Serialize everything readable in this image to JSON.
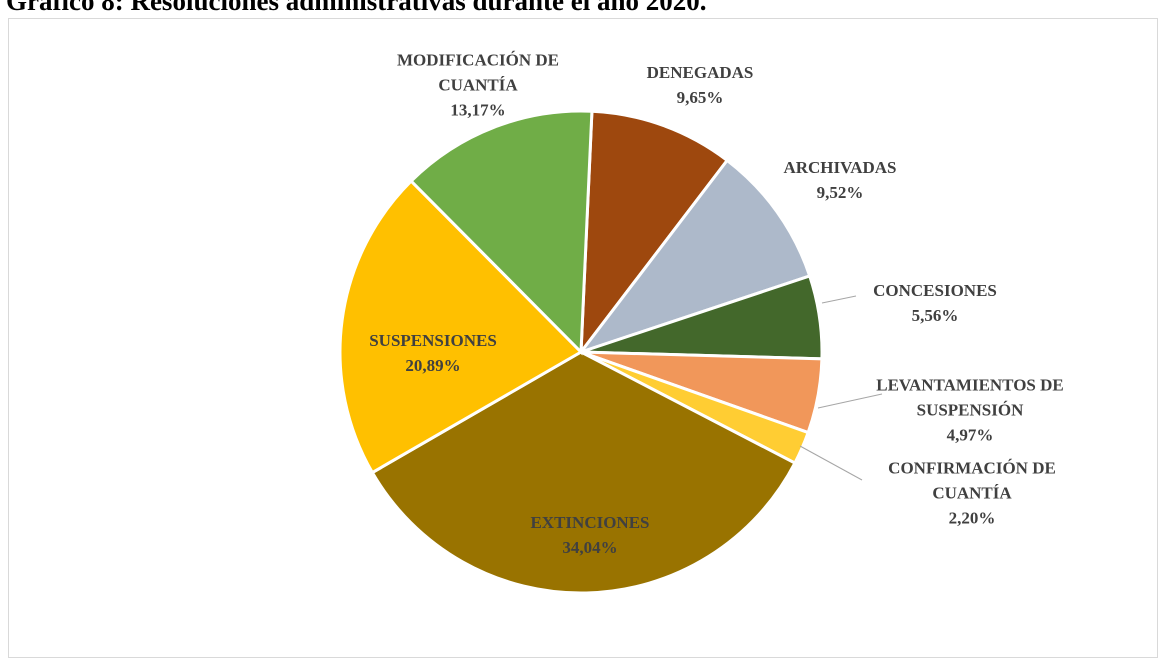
{
  "chart_data": {
    "type": "pie",
    "title": "Gráfico 8: Resoluciones administrativas durante el año 2020.",
    "categories": [
      "DENEGADAS",
      "ARCHIVADAS",
      "CONCESIONES",
      "LEVANTAMIENTOS DE SUSPENSIÓN",
      "CONFIRMACIÓN DE CUANTÍA",
      "EXTINCIONES",
      "SUSPENSIONES",
      "MODIFICACIÓN DE CUANTÍA"
    ],
    "values": [
      9.65,
      9.52,
      5.56,
      4.97,
      2.2,
      34.04,
      20.89,
      13.17
    ],
    "value_labels": [
      "9,65%",
      "9,52%",
      "5,56%",
      "4,97%",
      "2,20%",
      "34,04%",
      "20,89%",
      "13,17%"
    ],
    "colors": [
      "#9e480e",
      "#adb9ca",
      "#43682b",
      "#f1975a",
      "#ffcd33",
      "#997300",
      "#ffc000",
      "#70ad47"
    ]
  }
}
